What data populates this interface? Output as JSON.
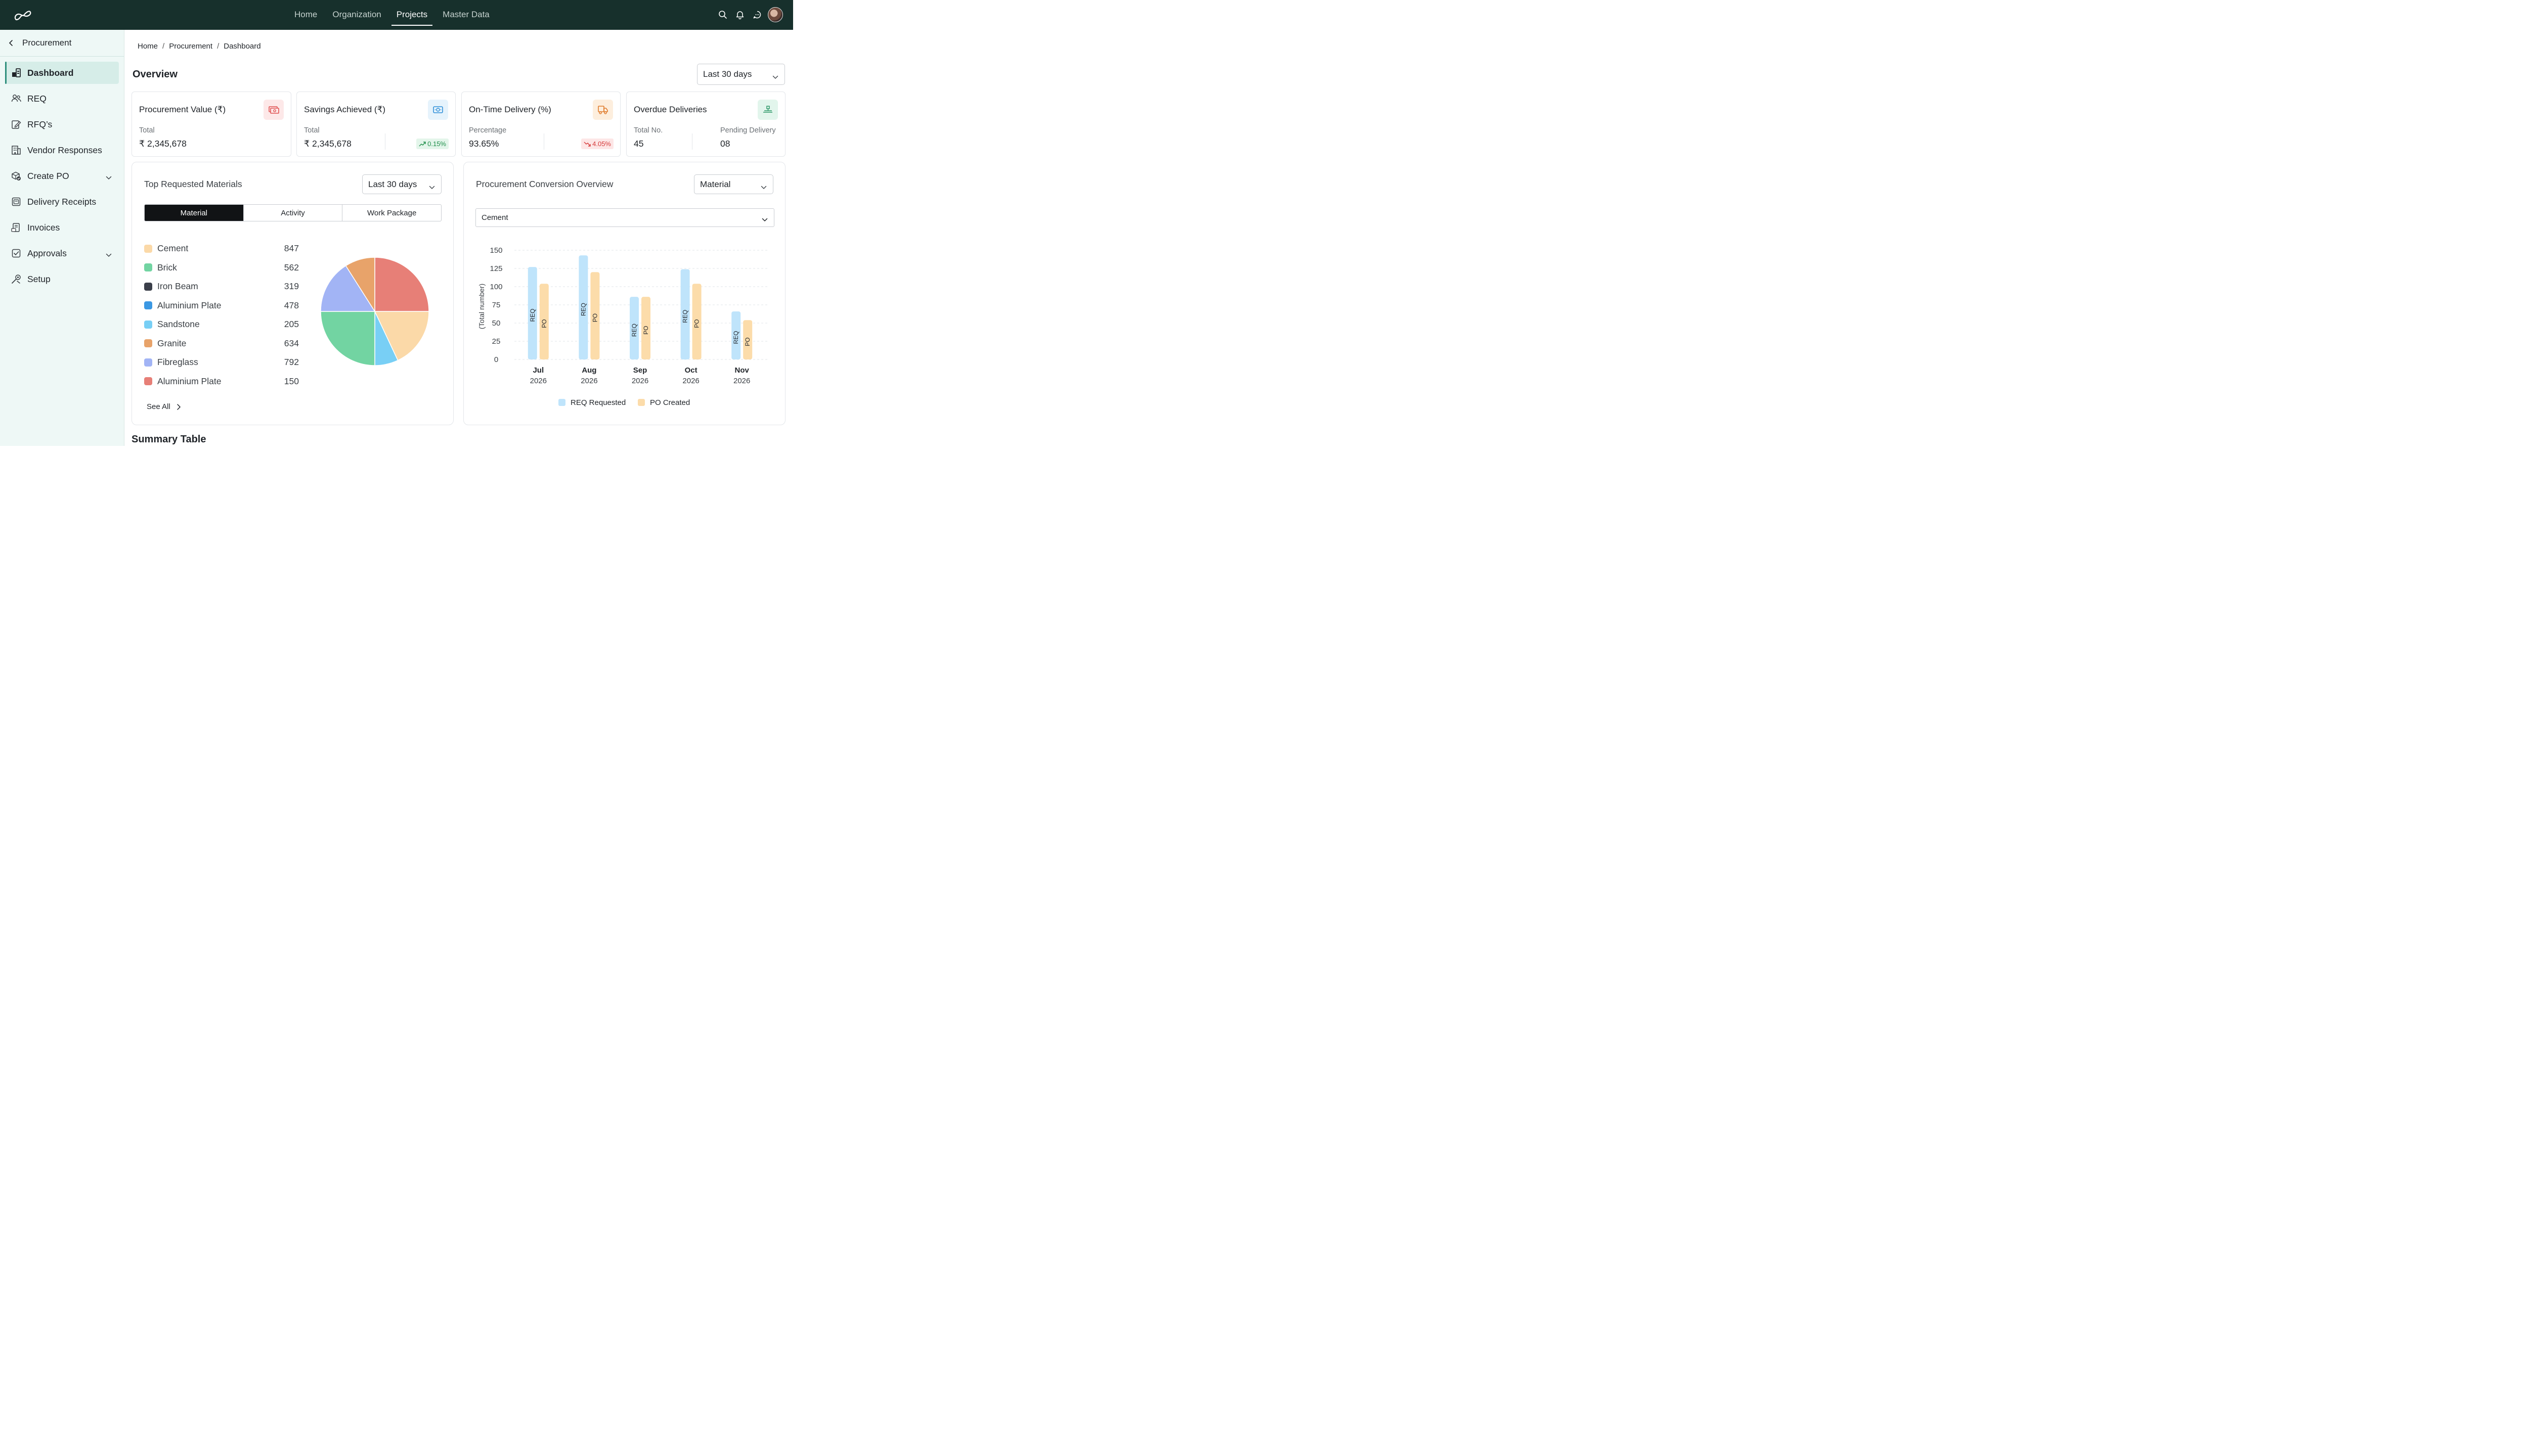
{
  "topnav": {
    "items": [
      {
        "label": "Home",
        "active": false
      },
      {
        "label": "Organization",
        "active": false
      },
      {
        "label": "Projects",
        "active": true
      },
      {
        "label": "Master Data",
        "active": false
      }
    ],
    "icons": [
      "search-icon",
      "bell-icon",
      "chat-icon",
      "avatar"
    ]
  },
  "sidebar": {
    "header": "Procurement",
    "items": [
      {
        "label": "Dashboard",
        "icon": "dashboard-icon",
        "active": true
      },
      {
        "label": "REQ",
        "icon": "users-icon"
      },
      {
        "label": "RFQ’s",
        "icon": "edit-doc-icon"
      },
      {
        "label": "Vendor Responses",
        "icon": "building-icon"
      },
      {
        "label": "Create PO",
        "icon": "box-check-icon",
        "expandable": true
      },
      {
        "label": "Delivery Receipts",
        "icon": "receipt-icon"
      },
      {
        "label": "Invoices",
        "icon": "invoice-icon"
      },
      {
        "label": "Approvals",
        "icon": "check-square-icon",
        "expandable": true
      },
      {
        "label": "Setup",
        "icon": "settings-tools-icon"
      }
    ]
  },
  "breadcrumb": [
    "Home",
    "Procurement",
    "Dashboard"
  ],
  "overview": {
    "title": "Overview",
    "range": "Last 30 days"
  },
  "kpis": {
    "procurement": {
      "title": "Procurement Value (₹)",
      "sub": "Total",
      "value": "₹ 2,345,678",
      "icon": "cash-icon",
      "color": "#e05252"
    },
    "savings": {
      "title": "Savings Achieved (₹)",
      "sub": "Total",
      "value": "₹ 2,345,678",
      "badge": "0.15%",
      "trend": "up",
      "icon": "money-icon",
      "color": "#2f8fd8"
    },
    "ontime": {
      "title": "On-Time Delivery (%)",
      "sub": "Percentage",
      "value": "93.65%",
      "badge": "4.05%",
      "trend": "down",
      "icon": "truck-icon",
      "color": "#e07b2c"
    },
    "overdue": {
      "title": "Overdue Deliveries",
      "sub1": "Total No.",
      "value1": "45",
      "sub2": "Pending Delivery",
      "value2": "08",
      "icon": "delivery-icon",
      "color": "#2f9a6a"
    }
  },
  "materials": {
    "title": "Top Requested Materials",
    "range": "Last 30 days",
    "tabs": [
      "Material",
      "Activity",
      "Work Package"
    ],
    "active_tab": "Material",
    "see_all": "See All",
    "items": [
      {
        "name": "Cement",
        "value": 847,
        "color": "#fbd9a8"
      },
      {
        "name": "Brick",
        "value": 562,
        "color": "#72d4a2"
      },
      {
        "name": "Iron Beam",
        "value": 319,
        "color": "#3b3f4a"
      },
      {
        "name": "Aluminium Plate",
        "value": 478,
        "color": "#3b98e3"
      },
      {
        "name": "Sandstone",
        "value": 205,
        "color": "#78cff5"
      },
      {
        "name": "Granite",
        "value": 634,
        "color": "#e8a36a"
      },
      {
        "name": "Fibreglass",
        "value": 792,
        "color": "#a2b4f5"
      },
      {
        "name": "Aluminium Plate",
        "value": 150,
        "color": "#e77f77"
      }
    ]
  },
  "chart_data": [
    {
      "type": "pie",
      "note": "Top Requested Materials pie",
      "slices": [
        {
          "label": "Aluminium Plate",
          "share": 0.25,
          "color": "#e77f77"
        },
        {
          "label": "Cement",
          "share": 0.18,
          "color": "#fbd9a8"
        },
        {
          "label": "Sandstone",
          "share": 0.07,
          "color": "#78cff5"
        },
        {
          "label": "Brick",
          "share": 0.25,
          "color": "#72d4a2"
        },
        {
          "label": "Fibreglass",
          "share": 0.16,
          "color": "#a2b4f5"
        },
        {
          "label": "Granite",
          "share": 0.09,
          "color": "#e8a36a"
        }
      ]
    },
    {
      "type": "bar",
      "title": "Procurement Conversion Overview",
      "ylabel": "(Total number)",
      "ylim": [
        0,
        150
      ],
      "yticks": [
        0,
        25,
        50,
        75,
        100,
        125,
        150
      ],
      "categories": [
        {
          "month": "Jul",
          "year": "2026"
        },
        {
          "month": "Aug",
          "year": "2026"
        },
        {
          "month": "Sep",
          "year": "2026"
        },
        {
          "month": "Oct",
          "year": "2026"
        },
        {
          "month": "Nov",
          "year": "2026"
        }
      ],
      "series": [
        {
          "name": "REQ Requested",
          "short": "REQ",
          "color": "#bfe4fb",
          "values": [
            127,
            143,
            86,
            124,
            66
          ]
        },
        {
          "name": "PO Created",
          "short": "PO",
          "color": "#fcdcaa",
          "values": [
            104,
            120,
            86,
            104,
            54
          ]
        }
      ],
      "grid": true,
      "legend": "bottom"
    }
  ],
  "conversion": {
    "title": "Procurement Conversion Overview",
    "filter": "Material",
    "sub_filter": "Cement"
  },
  "summary": {
    "title": "Summary Table"
  }
}
